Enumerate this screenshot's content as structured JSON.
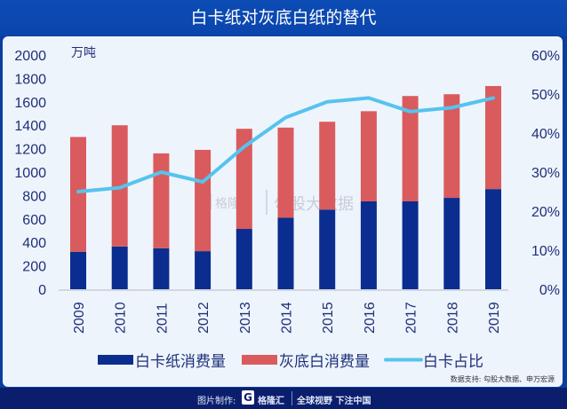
{
  "title": "白卡纸对灰底白纸的替代",
  "footer": {
    "made_by_label": "图片制作:",
    "brand": "格隆汇",
    "logo_letter": "G",
    "slogan": "全球视野 下注中国"
  },
  "watermark": {
    "brand": "格隆汇",
    "text": "勾股大数据"
  },
  "source": "数据支持: 勾股大数据、申万宏源",
  "colors": {
    "white_card": "#0a2d8f",
    "gray_board": "#d95b5e",
    "share_line": "#56c3ee",
    "title_bg": "#0d4cb5"
  },
  "chart_data": {
    "type": "bar",
    "stacked": true,
    "title": "白卡纸对灰底白纸的替代",
    "ylabel": "万吨",
    "ylim": [
      0,
      2000
    ],
    "y_ticks": [
      "0",
      "200",
      "400",
      "600",
      "800",
      "1000",
      "1200",
      "1400",
      "1600",
      "1800",
      "2000"
    ],
    "y2lim": [
      0,
      60
    ],
    "y2_ticks": [
      "0%",
      "10%",
      "20%",
      "30%",
      "40%",
      "50%",
      "60%"
    ],
    "categories": [
      "2009",
      "2010",
      "2011",
      "2012",
      "2013",
      "2014",
      "2015",
      "2016",
      "2017",
      "2018",
      "2019"
    ],
    "series": [
      {
        "name": "白卡纸消费量",
        "type": "bar",
        "axis": "left",
        "values": [
          320,
          365,
          350,
          325,
          515,
          610,
          680,
          750,
          750,
          780,
          855
        ]
      },
      {
        "name": "灰底白消费量",
        "type": "bar",
        "axis": "left",
        "values": [
          980,
          1035,
          810,
          865,
          855,
          770,
          750,
          770,
          900,
          885,
          880
        ]
      },
      {
        "name": "白卡占比",
        "type": "line",
        "axis": "right",
        "unit": "%",
        "values": [
          25,
          26,
          30,
          27.5,
          36.5,
          44,
          48,
          49,
          45.5,
          46.5,
          49
        ]
      }
    ],
    "legend_position": "bottom",
    "grid": false
  }
}
